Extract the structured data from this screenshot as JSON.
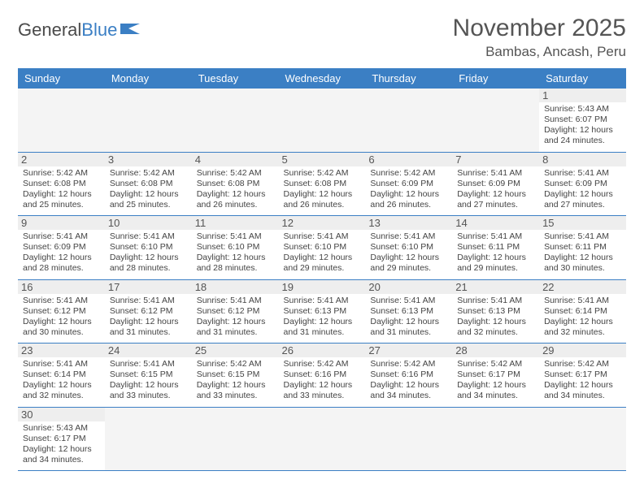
{
  "brand": {
    "part1": "General",
    "part2": "Blue"
  },
  "title": "November 2025",
  "location": "Bambas, Ancash, Peru",
  "colors": {
    "accent": "#3b7fc4",
    "header_text": "#ffffff",
    "day_bg": "#eeeeee",
    "empty_bg": "#f4f4f4",
    "text": "#444444",
    "border": "#3b7fc4"
  },
  "weekdays": [
    "Sunday",
    "Monday",
    "Tuesday",
    "Wednesday",
    "Thursday",
    "Friday",
    "Saturday"
  ],
  "weeks": [
    [
      null,
      null,
      null,
      null,
      null,
      null,
      {
        "n": "1",
        "sunrise": "5:43 AM",
        "sunset": "6:07 PM",
        "dl": "12 hours and 24 minutes."
      }
    ],
    [
      {
        "n": "2",
        "sunrise": "5:42 AM",
        "sunset": "6:08 PM",
        "dl": "12 hours and 25 minutes."
      },
      {
        "n": "3",
        "sunrise": "5:42 AM",
        "sunset": "6:08 PM",
        "dl": "12 hours and 25 minutes."
      },
      {
        "n": "4",
        "sunrise": "5:42 AM",
        "sunset": "6:08 PM",
        "dl": "12 hours and 26 minutes."
      },
      {
        "n": "5",
        "sunrise": "5:42 AM",
        "sunset": "6:08 PM",
        "dl": "12 hours and 26 minutes."
      },
      {
        "n": "6",
        "sunrise": "5:42 AM",
        "sunset": "6:09 PM",
        "dl": "12 hours and 26 minutes."
      },
      {
        "n": "7",
        "sunrise": "5:41 AM",
        "sunset": "6:09 PM",
        "dl": "12 hours and 27 minutes."
      },
      {
        "n": "8",
        "sunrise": "5:41 AM",
        "sunset": "6:09 PM",
        "dl": "12 hours and 27 minutes."
      }
    ],
    [
      {
        "n": "9",
        "sunrise": "5:41 AM",
        "sunset": "6:09 PM",
        "dl": "12 hours and 28 minutes."
      },
      {
        "n": "10",
        "sunrise": "5:41 AM",
        "sunset": "6:10 PM",
        "dl": "12 hours and 28 minutes."
      },
      {
        "n": "11",
        "sunrise": "5:41 AM",
        "sunset": "6:10 PM",
        "dl": "12 hours and 28 minutes."
      },
      {
        "n": "12",
        "sunrise": "5:41 AM",
        "sunset": "6:10 PM",
        "dl": "12 hours and 29 minutes."
      },
      {
        "n": "13",
        "sunrise": "5:41 AM",
        "sunset": "6:10 PM",
        "dl": "12 hours and 29 minutes."
      },
      {
        "n": "14",
        "sunrise": "5:41 AM",
        "sunset": "6:11 PM",
        "dl": "12 hours and 29 minutes."
      },
      {
        "n": "15",
        "sunrise": "5:41 AM",
        "sunset": "6:11 PM",
        "dl": "12 hours and 30 minutes."
      }
    ],
    [
      {
        "n": "16",
        "sunrise": "5:41 AM",
        "sunset": "6:12 PM",
        "dl": "12 hours and 30 minutes."
      },
      {
        "n": "17",
        "sunrise": "5:41 AM",
        "sunset": "6:12 PM",
        "dl": "12 hours and 31 minutes."
      },
      {
        "n": "18",
        "sunrise": "5:41 AM",
        "sunset": "6:12 PM",
        "dl": "12 hours and 31 minutes."
      },
      {
        "n": "19",
        "sunrise": "5:41 AM",
        "sunset": "6:13 PM",
        "dl": "12 hours and 31 minutes."
      },
      {
        "n": "20",
        "sunrise": "5:41 AM",
        "sunset": "6:13 PM",
        "dl": "12 hours and 31 minutes."
      },
      {
        "n": "21",
        "sunrise": "5:41 AM",
        "sunset": "6:13 PM",
        "dl": "12 hours and 32 minutes."
      },
      {
        "n": "22",
        "sunrise": "5:41 AM",
        "sunset": "6:14 PM",
        "dl": "12 hours and 32 minutes."
      }
    ],
    [
      {
        "n": "23",
        "sunrise": "5:41 AM",
        "sunset": "6:14 PM",
        "dl": "12 hours and 32 minutes."
      },
      {
        "n": "24",
        "sunrise": "5:41 AM",
        "sunset": "6:15 PM",
        "dl": "12 hours and 33 minutes."
      },
      {
        "n": "25",
        "sunrise": "5:42 AM",
        "sunset": "6:15 PM",
        "dl": "12 hours and 33 minutes."
      },
      {
        "n": "26",
        "sunrise": "5:42 AM",
        "sunset": "6:16 PM",
        "dl": "12 hours and 33 minutes."
      },
      {
        "n": "27",
        "sunrise": "5:42 AM",
        "sunset": "6:16 PM",
        "dl": "12 hours and 34 minutes."
      },
      {
        "n": "28",
        "sunrise": "5:42 AM",
        "sunset": "6:17 PM",
        "dl": "12 hours and 34 minutes."
      },
      {
        "n": "29",
        "sunrise": "5:42 AM",
        "sunset": "6:17 PM",
        "dl": "12 hours and 34 minutes."
      }
    ],
    [
      {
        "n": "30",
        "sunrise": "5:43 AM",
        "sunset": "6:17 PM",
        "dl": "12 hours and 34 minutes."
      },
      null,
      null,
      null,
      null,
      null,
      null
    ]
  ],
  "labels": {
    "sunrise": "Sunrise:",
    "sunset": "Sunset:",
    "daylight": "Daylight:"
  }
}
